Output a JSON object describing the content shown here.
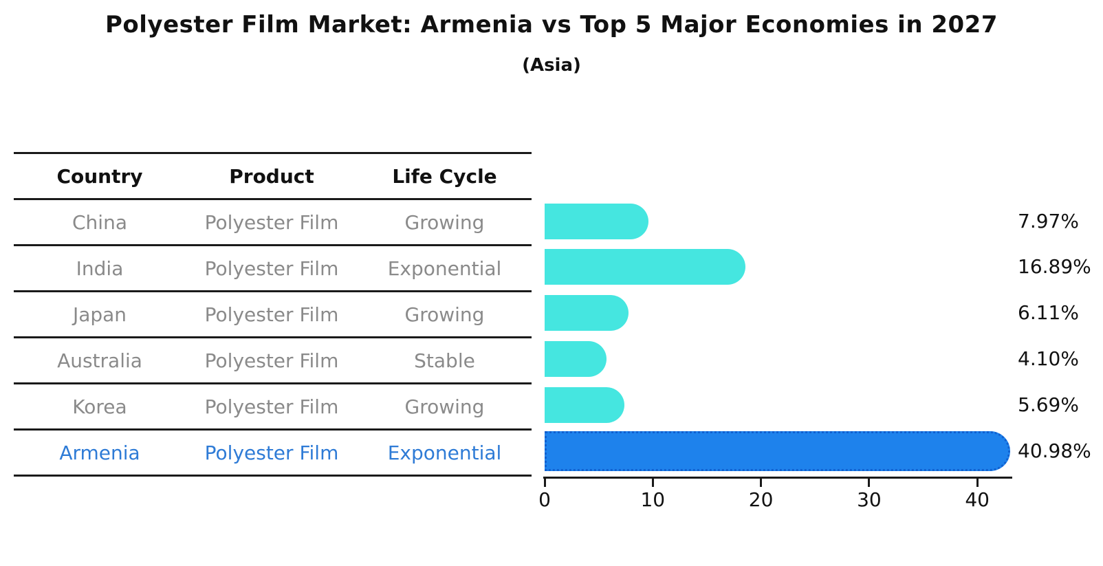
{
  "title": "Polyester Film Market: Armenia vs Top 5 Major Economies in 2027",
  "subtitle": "(Asia)",
  "table": {
    "headers": [
      "Country",
      "Product",
      "Life Cycle"
    ],
    "rows": [
      {
        "country": "China",
        "product": "Polyester Film",
        "life_cycle": "Growing",
        "highlight": false
      },
      {
        "country": "India",
        "product": "Polyester Film",
        "life_cycle": "Exponential",
        "highlight": false
      },
      {
        "country": "Japan",
        "product": "Polyester Film",
        "life_cycle": "Growing",
        "highlight": false
      },
      {
        "country": "Australia",
        "product": "Polyester Film",
        "life_cycle": "Stable",
        "highlight": false
      },
      {
        "country": "Korea",
        "product": "Polyester Film",
        "life_cycle": "Growing",
        "highlight": false
      },
      {
        "country": "Armenia",
        "product": "Polyester Film",
        "life_cycle": "Exponential",
        "highlight": true
      }
    ]
  },
  "chart_data": {
    "type": "bar",
    "orientation": "horizontal",
    "categories": [
      "China",
      "India",
      "Japan",
      "Australia",
      "Korea",
      "Armenia"
    ],
    "values": [
      7.97,
      16.89,
      6.11,
      4.1,
      5.69,
      40.98
    ],
    "value_labels": [
      "7.97%",
      "16.89%",
      "6.11%",
      "4.10%",
      "5.69%",
      "40.98%"
    ],
    "x_ticks": [
      "0",
      "10",
      "20",
      "30",
      "40"
    ],
    "x_tick_values": [
      0,
      10,
      20,
      30,
      40
    ],
    "xlim": [
      0,
      43.2
    ],
    "highlight_index": 5,
    "grid": false,
    "legend": null
  },
  "colors": {
    "bar_default": "#45e6e0",
    "bar_highlight": "#1e82ec",
    "bar_highlight_border": "#1060d0",
    "highlight_text": "#2e7bd6",
    "table_text": "#8a8a8a",
    "header_text": "#111111",
    "line": "#1a1a1a"
  }
}
